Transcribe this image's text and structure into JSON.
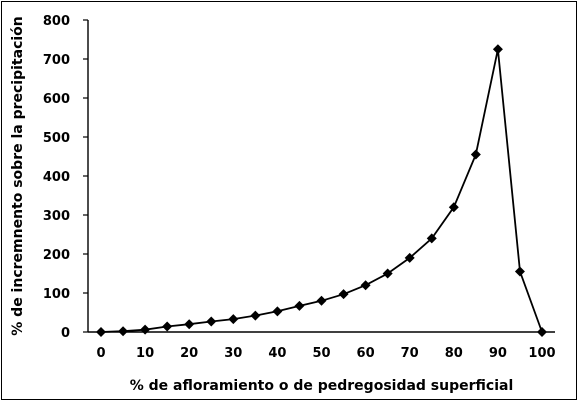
{
  "chart_data": {
    "type": "line",
    "title": "",
    "xlabel": "% de afloramiento o de pedregosidad superficial",
    "ylabel": "% de incremnento sobre la precipitación",
    "xlim": [
      0,
      100
    ],
    "ylim": [
      0,
      800
    ],
    "xticks": [
      0,
      10,
      20,
      30,
      40,
      50,
      60,
      70,
      80,
      90,
      100
    ],
    "yticks": [
      0,
      100,
      200,
      300,
      400,
      500,
      600,
      700,
      800
    ],
    "grid": false,
    "legend": "none",
    "series": [
      {
        "marker": "diamond",
        "color": "#000000",
        "x": [
          0,
          5,
          10,
          15,
          20,
          25,
          30,
          35,
          40,
          45,
          50,
          55,
          60,
          65,
          70,
          75,
          80,
          85,
          90,
          95,
          100
        ],
        "y": [
          0,
          2,
          6,
          14,
          20,
          27,
          33,
          42,
          53,
          67,
          80,
          97,
          120,
          150,
          190,
          240,
          320,
          455,
          725,
          155,
          0
        ]
      }
    ]
  }
}
